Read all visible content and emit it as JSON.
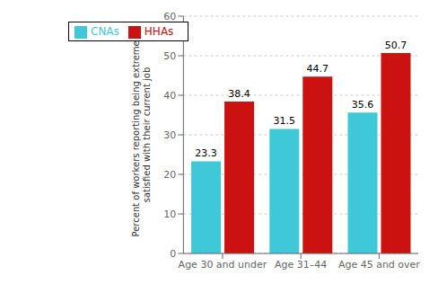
{
  "chart_data": {
    "type": "bar",
    "categories": [
      "Age 30 and under",
      "Age 31–44",
      "Age 45 and over"
    ],
    "series": [
      {
        "name": "CNAs",
        "color": "#3ec8d8",
        "values": [
          23.3,
          31.5,
          35.6
        ]
      },
      {
        "name": "HHAs",
        "color": "#cc1111",
        "values": [
          38.4,
          44.7,
          50.7
        ]
      }
    ],
    "ylabel": "Percent of workers reporting being extremely\nsatisfied with their current job",
    "ylim": [
      0,
      60
    ],
    "yticks": [
      0,
      10,
      20,
      30,
      40,
      50,
      60
    ],
    "grid": true,
    "legend": "upper left",
    "data_labels": true
  }
}
